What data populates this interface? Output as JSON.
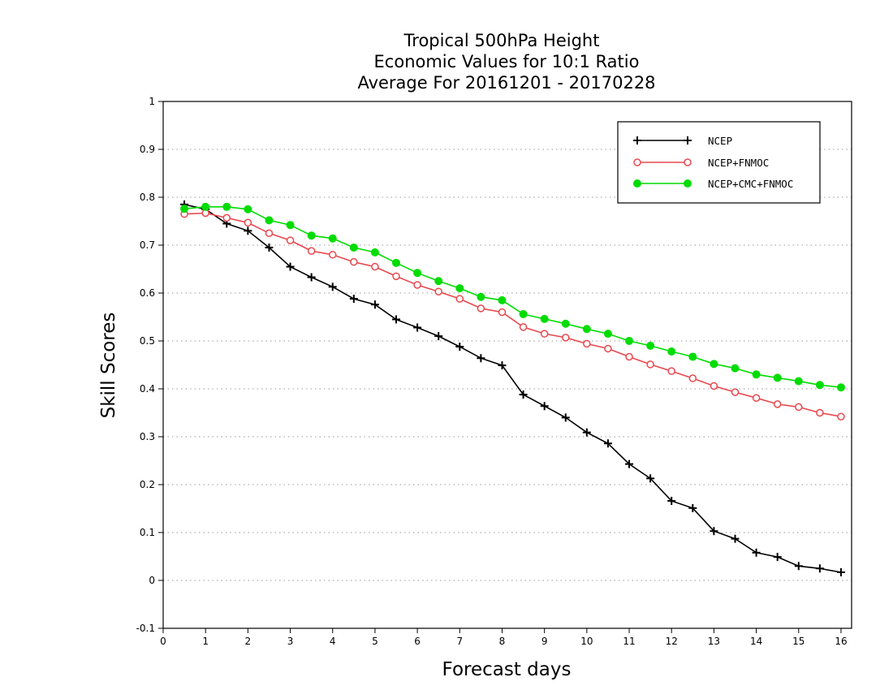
{
  "chart_data": {
    "type": "line",
    "title": [
      "Tropical 500hPa Height",
      "Economic Values for 10:1 Ratio",
      "Average For 20161201 - 20170228"
    ],
    "xlabel": "Forecast days",
    "ylabel": "Skill Scores",
    "xlim": [
      0,
      16.25
    ],
    "ylim": [
      -0.1,
      1
    ],
    "xticks": [
      0,
      1,
      2,
      3,
      4,
      5,
      6,
      7,
      8,
      9,
      10,
      11,
      12,
      13,
      14,
      15,
      16
    ],
    "yticks": [
      -0.1,
      0,
      0.1,
      0.2,
      0.3,
      0.4,
      0.5,
      0.6,
      0.7,
      0.8,
      0.9,
      1
    ],
    "ytick_labels": [
      "-0.1",
      "0",
      "0.1",
      "0.2",
      "0.3",
      "0.4",
      "0.5",
      "0.6",
      "0.7",
      "0.8",
      "0.9",
      "1"
    ],
    "grid": "horizontal dotted",
    "legend_position": "top-right",
    "x": [
      0.5,
      1,
      1.5,
      2,
      2.5,
      3,
      3.5,
      4,
      4.5,
      5,
      5.5,
      6,
      6.5,
      7,
      7.5,
      8,
      8.5,
      9,
      9.5,
      10,
      10.5,
      11,
      11.5,
      12,
      12.5,
      13,
      13.5,
      14,
      14.5,
      15,
      15.5,
      16
    ],
    "series": [
      {
        "name": "NCEP",
        "color": "#000000",
        "marker": "plus",
        "values": [
          0.785,
          0.775,
          0.745,
          0.73,
          0.695,
          0.655,
          0.633,
          0.613,
          0.588,
          0.576,
          0.545,
          0.528,
          0.51,
          0.488,
          0.464,
          0.449,
          0.388,
          0.364,
          0.34,
          0.309,
          0.286,
          0.243,
          0.213,
          0.166,
          0.151,
          0.103,
          0.087,
          0.058,
          0.049,
          0.03,
          0.025,
          0.017
        ]
      },
      {
        "name": "NCEP+FNMOC",
        "color": "#e8484e",
        "marker": "open-circle",
        "values": [
          0.765,
          0.767,
          0.757,
          0.747,
          0.725,
          0.71,
          0.688,
          0.68,
          0.665,
          0.655,
          0.635,
          0.617,
          0.603,
          0.588,
          0.568,
          0.56,
          0.529,
          0.515,
          0.507,
          0.494,
          0.484,
          0.467,
          0.451,
          0.437,
          0.422,
          0.406,
          0.393,
          0.381,
          0.368,
          0.362,
          0.35,
          0.342
        ]
      },
      {
        "name": "NCEP+CMC+FNMOC",
        "color": "#00dc00",
        "marker": "filled-circle",
        "values": [
          0.776,
          0.78,
          0.78,
          0.775,
          0.752,
          0.742,
          0.72,
          0.714,
          0.695,
          0.685,
          0.663,
          0.642,
          0.625,
          0.61,
          0.592,
          0.585,
          0.556,
          0.546,
          0.536,
          0.525,
          0.515,
          0.5,
          0.49,
          0.478,
          0.467,
          0.452,
          0.443,
          0.43,
          0.423,
          0.416,
          0.408,
          0.403
        ]
      }
    ]
  }
}
